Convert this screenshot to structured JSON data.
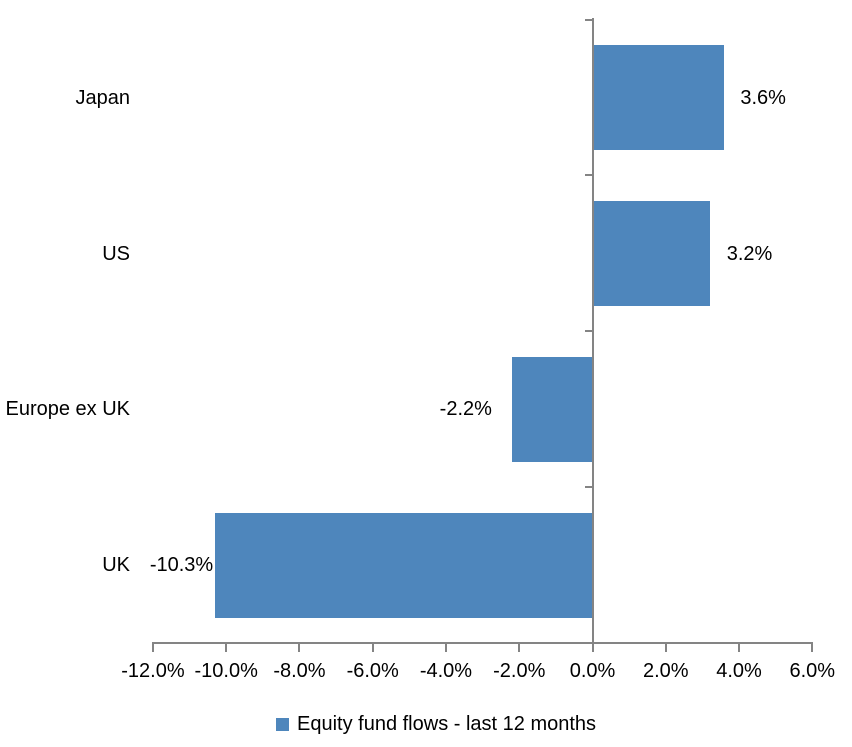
{
  "chart_data": {
    "type": "bar",
    "orientation": "horizontal",
    "title": "",
    "categories": [
      "Japan",
      "US",
      "Europe ex UK",
      "UK"
    ],
    "series": [
      {
        "name": "Equity fund flows - last 12 months",
        "values": [
          3.6,
          3.2,
          -2.2,
          -10.3
        ],
        "data_labels": [
          "3.6%",
          "3.2%",
          "-2.2%",
          "-10.3%"
        ]
      }
    ],
    "series_name": "Equity fund flows - last 12 months",
    "xlabel": "",
    "ylabel": "",
    "xlim": [
      -12,
      6
    ],
    "x_ticks": [
      -12,
      -10,
      -8,
      -6,
      -4,
      -2,
      0,
      2,
      4,
      6
    ],
    "x_tick_labels": [
      "-12.0%",
      "-10.0%",
      "-8.0%",
      "-6.0%",
      "-4.0%",
      "-2.0%",
      "0.0%",
      "2.0%",
      "4.0%",
      "6.0%"
    ],
    "grid": false,
    "legend_position": "bottom",
    "bar_color": "#4E86BC",
    "axis_color": "#848484",
    "text_color": "#000000",
    "background_color": "#FFFFFF"
  }
}
